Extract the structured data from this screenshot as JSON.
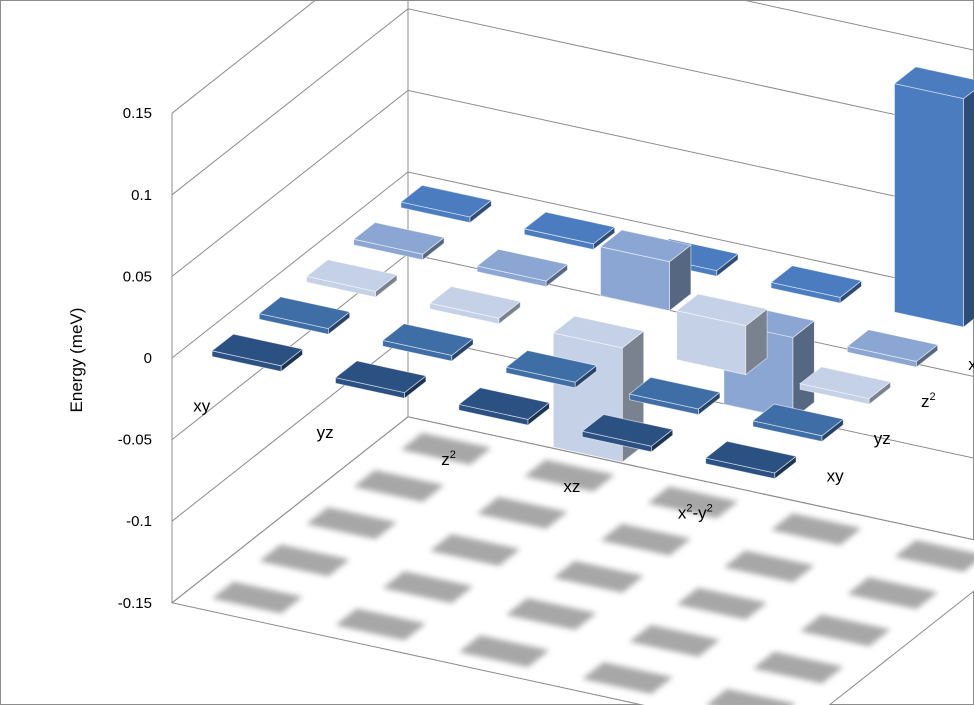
{
  "chart_data": {
    "type": "bar3d",
    "title": "",
    "ylabel": "Energy (meV)",
    "ylim": [
      -0.15,
      0.15
    ],
    "yticks": [
      "0.15",
      "0.1",
      "0.05",
      "0",
      "-0.05",
      "-0.1",
      "-0.15"
    ],
    "yticks_values": [
      0.15,
      0.1,
      0.05,
      0,
      -0.05,
      -0.1,
      -0.15
    ],
    "x_categories": [
      {
        "key": "xy",
        "base": "xy",
        "sup1": "",
        "mid": "",
        "sup2": ""
      },
      {
        "key": "yz",
        "base": "yz",
        "sup1": "",
        "mid": "",
        "sup2": ""
      },
      {
        "key": "z2",
        "base": "z",
        "sup1": "2",
        "mid": "",
        "sup2": ""
      },
      {
        "key": "xz",
        "base": "xz",
        "sup1": "",
        "mid": "",
        "sup2": ""
      },
      {
        "key": "x2-y2",
        "base": "x",
        "sup1": "2",
        "mid": "-y",
        "sup2": "2"
      }
    ],
    "depth_categories": [
      {
        "key": "xy",
        "base": "xy",
        "sup1": "",
        "mid": "",
        "sup2": ""
      },
      {
        "key": "yz",
        "base": "yz",
        "sup1": "",
        "mid": "",
        "sup2": ""
      },
      {
        "key": "z2",
        "base": "z",
        "sup1": "2",
        "mid": "",
        "sup2": ""
      },
      {
        "key": "xz",
        "base": "xz",
        "sup1": "",
        "mid": "",
        "sup2": ""
      },
      {
        "key": "x2-y2",
        "base": "x",
        "sup1": "2",
        "mid": "-y",
        "sup2": "2"
      }
    ],
    "matrix": [
      [
        0.0,
        0.0,
        0.0,
        0.0,
        0.0
      ],
      [
        0.0,
        0.0,
        0.0,
        0.0,
        0.0
      ],
      [
        0.0,
        0.0,
        -0.07,
        0.03,
        0.0
      ],
      [
        0.0,
        0.0,
        0.03,
        -0.05,
        0.0
      ],
      [
        0.0,
        0.0,
        0.0,
        0.0,
        0.14
      ]
    ],
    "series_colors": [
      "#2b5183",
      "#3f6ea7",
      "#c5d1e6",
      "#8ba6d2",
      "#4a7cbf"
    ],
    "grid": true,
    "floor_shadows": true
  }
}
